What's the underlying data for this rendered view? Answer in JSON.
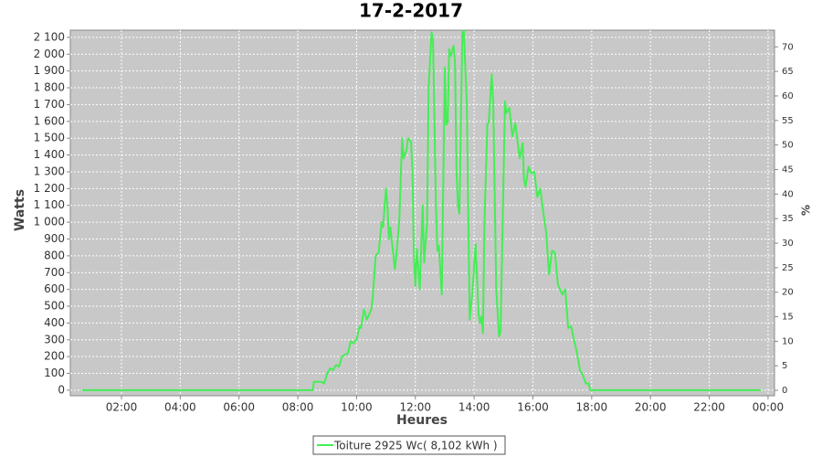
{
  "chart_data": {
    "type": "line",
    "title": "17-2-2017",
    "xlabel": "Heures",
    "ylabel": "Watts",
    "y2label": "%",
    "x": [
      0.66,
      8.5,
      8.55,
      8.8,
      8.9,
      9.0,
      9.1,
      9.2,
      9.3,
      9.4,
      9.5,
      9.6,
      9.7,
      9.8,
      9.9,
      10.0,
      10.1,
      10.15,
      10.25,
      10.35,
      10.5,
      10.55,
      10.65,
      10.75,
      10.85,
      10.9,
      11.0,
      11.05,
      11.1,
      11.15,
      11.3,
      11.35,
      11.45,
      11.55,
      11.6,
      11.7,
      11.75,
      11.85,
      11.9,
      11.95,
      12.0,
      12.05,
      12.15,
      12.25,
      12.3,
      12.4,
      12.45,
      12.55,
      12.6,
      12.7,
      12.75,
      12.8,
      12.9,
      13.0,
      13.05,
      13.1,
      13.15,
      13.2,
      13.3,
      13.35,
      13.4,
      13.45,
      13.5,
      13.6,
      13.65,
      13.75,
      13.85,
      13.95,
      14.05,
      14.15,
      14.2,
      14.25,
      14.3,
      14.35,
      14.45,
      14.5,
      14.6,
      14.65,
      14.75,
      14.85,
      14.9,
      15.05,
      15.1,
      15.2,
      15.3,
      15.4,
      15.5,
      15.55,
      15.65,
      15.7,
      15.75,
      15.85,
      15.95,
      16.05,
      16.15,
      16.25,
      16.35,
      16.45,
      16.55,
      16.65,
      16.75,
      16.85,
      17.0,
      17.1,
      17.2,
      17.3,
      17.4,
      17.5,
      17.6,
      17.7,
      17.8,
      17.9,
      17.95,
      23.75
    ],
    "series": [
      {
        "name": "Toiture 2925 Wc( 8,102 kWh )",
        "color": "#44ee55",
        "values": [
          0,
          0,
          50,
          50,
          40,
          100,
          130,
          120,
          150,
          140,
          200,
          210,
          220,
          290,
          280,
          300,
          380,
          370,
          480,
          420,
          480,
          550,
          800,
          820,
          1000,
          970,
          1200,
          1100,
          900,
          970,
          720,
          800,
          1000,
          1500,
          1380,
          1430,
          1500,
          1480,
          1300,
          800,
          620,
          840,
          600,
          1100,
          760,
          1000,
          1800,
          2130,
          2080,
          1100,
          830,
          860,
          570,
          1920,
          1580,
          1600,
          2030,
          1990,
          2050,
          1950,
          1300,
          1100,
          1050,
          2130,
          2140,
          1700,
          420,
          600,
          870,
          450,
          400,
          440,
          340,
          1000,
          1580,
          1600,
          1880,
          1700,
          600,
          320,
          350,
          1720,
          1650,
          1680,
          1510,
          1590,
          1450,
          1380,
          1470,
          1250,
          1210,
          1330,
          1290,
          1300,
          1150,
          1200,
          1060,
          940,
          690,
          830,
          820,
          630,
          570,
          600,
          370,
          380,
          300,
          220,
          120,
          90,
          40,
          40,
          0,
          0
        ]
      }
    ],
    "xlim": [
      0.26,
      24.22
    ],
    "xticks": [
      {
        "value": 2,
        "label": "02:00"
      },
      {
        "value": 4,
        "label": "04:00"
      },
      {
        "value": 6,
        "label": "06:00"
      },
      {
        "value": 8,
        "label": "08:00"
      },
      {
        "value": 10,
        "label": "10:00"
      },
      {
        "value": 12,
        "label": "12:00"
      },
      {
        "value": 14,
        "label": "14:00"
      },
      {
        "value": 16,
        "label": "16:00"
      },
      {
        "value": 18,
        "label": "18:00"
      },
      {
        "value": 20,
        "label": "20:00"
      },
      {
        "value": 22,
        "label": "22:00"
      },
      {
        "value": 24,
        "label": "00:00"
      }
    ],
    "ylim": [
      -33,
      2143
    ],
    "yticks": [
      0,
      100,
      200,
      300,
      400,
      500,
      600,
      700,
      800,
      900,
      {
        "value": 1000,
        "label": "1 000"
      },
      {
        "value": 1100,
        "label": "1 100"
      },
      {
        "value": 1200,
        "label": "1 200"
      },
      {
        "value": 1300,
        "label": "1 300"
      },
      {
        "value": 1400,
        "label": "1 400"
      },
      {
        "value": 1500,
        "label": "1 500"
      },
      {
        "value": 1600,
        "label": "1 600"
      },
      {
        "value": 1700,
        "label": "1 700"
      },
      {
        "value": 1800,
        "label": "1 800"
      },
      {
        "value": 1900,
        "label": "1 900"
      },
      {
        "value": 2000,
        "label": "2 000"
      },
      {
        "value": 2100,
        "label": "2 100"
      }
    ],
    "y2lim": [
      -1.1,
      73.4
    ],
    "y2ticks": [
      0,
      5,
      10,
      15,
      20,
      25,
      30,
      35,
      40,
      45,
      50,
      55,
      60,
      65,
      70
    ],
    "grid": true,
    "legend": "bottom"
  }
}
